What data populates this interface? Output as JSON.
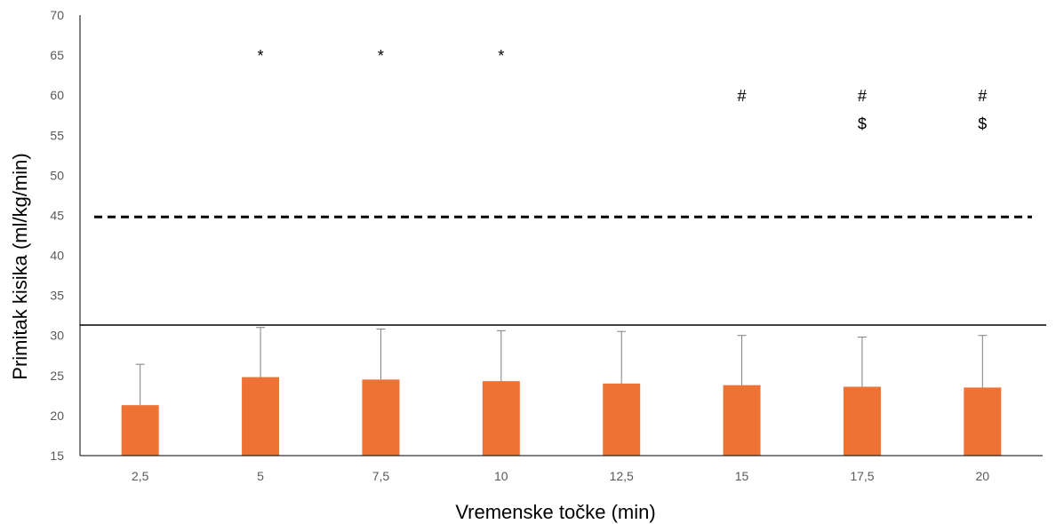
{
  "chart_data": {
    "type": "bar",
    "title": "",
    "xlabel": "Vremenske točke (min)",
    "ylabel": "Primitak kisika (ml/kg/min)",
    "categories": [
      "2,5",
      "5",
      "7,5",
      "10",
      "12,5",
      "15",
      "17,5",
      "20"
    ],
    "values": [
      21.3,
      24.8,
      24.5,
      24.3,
      24.0,
      23.8,
      23.6,
      23.5
    ],
    "error_upper": [
      26.4,
      31.0,
      30.8,
      30.6,
      30.5,
      30.0,
      29.8,
      30.0
    ],
    "ylim": [
      15,
      70
    ],
    "yticks": [
      15,
      20,
      25,
      30,
      35,
      40,
      45,
      50,
      55,
      60,
      65,
      70
    ],
    "reference_lines": [
      {
        "style": "dashed",
        "value": 44.8
      },
      {
        "style": "solid",
        "value": 31.3
      }
    ],
    "annotations": [
      {
        "category": "5",
        "text": "*",
        "value": 65
      },
      {
        "category": "7,5",
        "text": "*",
        "value": 65
      },
      {
        "category": "10",
        "text": "*",
        "value": 65
      },
      {
        "category": "15",
        "text": "#",
        "value": 60
      },
      {
        "category": "17,5",
        "text": "#",
        "value": 60
      },
      {
        "category": "17,5",
        "text": "$",
        "value": 56.5
      },
      {
        "category": "20",
        "text": "#",
        "value": 60
      },
      {
        "category": "20",
        "text": "$",
        "value": 56.5
      }
    ],
    "colors": {
      "bar": "#ED7233",
      "error": "#7F7F7F",
      "axis": "#000000",
      "tick_text": "#595959"
    },
    "grid": false,
    "legend": "none"
  }
}
